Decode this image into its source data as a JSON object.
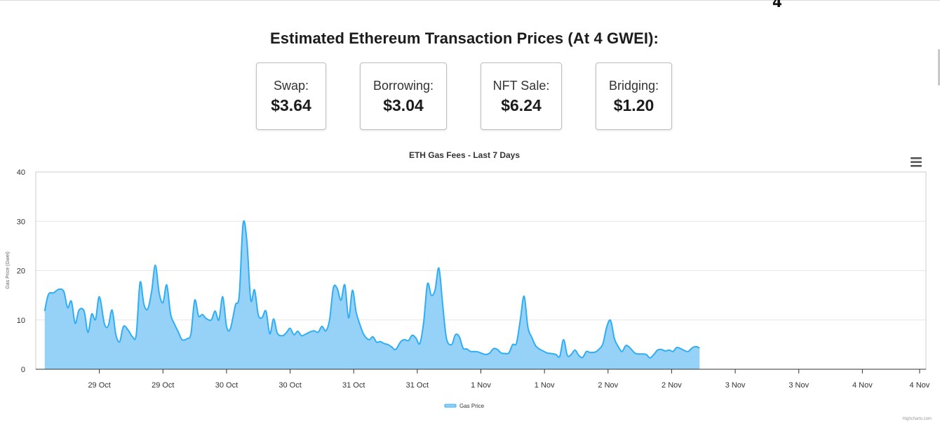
{
  "header": {
    "title": "Estimated Ethereum Transaction Prices (At 4 GWEI):",
    "corner_mark": "4"
  },
  "cards": [
    {
      "label": "Swap:",
      "value": "$3.64"
    },
    {
      "label": "Borrowing:",
      "value": "$3.04"
    },
    {
      "label": "NFT Sale:",
      "value": "$6.24"
    },
    {
      "label": "Bridging:",
      "value": "$1.20"
    }
  ],
  "credit": "Highcharts.com",
  "colors": {
    "area_fill": "#96d2f8",
    "line": "#2faef5",
    "grid": "#e6e6e6",
    "plot_border": "#cccccc"
  },
  "chart_data": {
    "type": "area",
    "title": "ETH Gas Fees - Last 7 Days",
    "ylabel": "Gas Price (Gwei)",
    "ylim": [
      0,
      40
    ],
    "yticks": [
      0,
      10,
      20,
      30,
      40
    ],
    "xlim": [
      0,
      7
    ],
    "x_unit": "days",
    "xticks": [
      {
        "x": 0.5,
        "label": "29 Oct"
      },
      {
        "x": 1.0,
        "label": "29 Oct"
      },
      {
        "x": 1.5,
        "label": "30 Oct"
      },
      {
        "x": 2.0,
        "label": "30 Oct"
      },
      {
        "x": 2.5,
        "label": "31 Oct"
      },
      {
        "x": 3.0,
        "label": "31 Oct"
      },
      {
        "x": 3.5,
        "label": "1 Nov"
      },
      {
        "x": 4.0,
        "label": "1 Nov"
      },
      {
        "x": 4.5,
        "label": "2 Nov"
      },
      {
        "x": 5.0,
        "label": "2 Nov"
      },
      {
        "x": 5.5,
        "label": "3 Nov"
      },
      {
        "x": 6.0,
        "label": "3 Nov"
      },
      {
        "x": 6.5,
        "label": "4 Nov"
      },
      {
        "x": 6.95,
        "label": "4 Nov"
      }
    ],
    "legend_position": "bottom-center",
    "series": [
      {
        "name": "Gas Price",
        "points": [
          [
            0.07,
            11.8
          ],
          [
            0.1,
            15.2
          ],
          [
            0.14,
            15.5
          ],
          [
            0.18,
            16.2
          ],
          [
            0.22,
            15.8
          ],
          [
            0.25,
            12.5
          ],
          [
            0.28,
            13.8
          ],
          [
            0.31,
            9.3
          ],
          [
            0.34,
            12.0
          ],
          [
            0.38,
            11.8
          ],
          [
            0.41,
            7.5
          ],
          [
            0.44,
            11.2
          ],
          [
            0.47,
            10.1
          ],
          [
            0.5,
            14.7
          ],
          [
            0.54,
            9.2
          ],
          [
            0.57,
            8.8
          ],
          [
            0.6,
            12.0
          ],
          [
            0.63,
            7.0
          ],
          [
            0.66,
            5.6
          ],
          [
            0.69,
            8.7
          ],
          [
            0.73,
            7.8
          ],
          [
            0.76,
            6.6
          ],
          [
            0.79,
            7.0
          ],
          [
            0.82,
            17.6
          ],
          [
            0.85,
            13.2
          ],
          [
            0.88,
            12.2
          ],
          [
            0.91,
            15.6
          ],
          [
            0.94,
            21.1
          ],
          [
            0.97,
            15.5
          ],
          [
            1.0,
            13.5
          ],
          [
            1.03,
            17.1
          ],
          [
            1.06,
            11.2
          ],
          [
            1.09,
            9.2
          ],
          [
            1.12,
            7.6
          ],
          [
            1.15,
            6.0
          ],
          [
            1.19,
            6.2
          ],
          [
            1.22,
            7.2
          ],
          [
            1.25,
            14.0
          ],
          [
            1.28,
            10.8
          ],
          [
            1.31,
            11.1
          ],
          [
            1.34,
            10.3
          ],
          [
            1.38,
            10.0
          ],
          [
            1.41,
            11.8
          ],
          [
            1.44,
            10.0
          ],
          [
            1.47,
            14.7
          ],
          [
            1.5,
            8.7
          ],
          [
            1.53,
            8.2
          ],
          [
            1.57,
            13.0
          ],
          [
            1.6,
            15.0
          ],
          [
            1.63,
            29.5
          ],
          [
            1.66,
            26.0
          ],
          [
            1.69,
            14.1
          ],
          [
            1.72,
            16.1
          ],
          [
            1.75,
            11.0
          ],
          [
            1.78,
            10.5
          ],
          [
            1.81,
            11.8
          ],
          [
            1.84,
            7.2
          ],
          [
            1.87,
            10.2
          ],
          [
            1.9,
            7.3
          ],
          [
            1.94,
            6.8
          ],
          [
            1.97,
            7.4
          ],
          [
            2.0,
            8.3
          ],
          [
            2.03,
            7.0
          ],
          [
            2.06,
            7.7
          ],
          [
            2.09,
            6.8
          ],
          [
            2.12,
            7.1
          ],
          [
            2.16,
            7.6
          ],
          [
            2.19,
            7.8
          ],
          [
            2.22,
            7.5
          ],
          [
            2.25,
            8.7
          ],
          [
            2.28,
            7.8
          ],
          [
            2.31,
            10.0
          ],
          [
            2.34,
            16.5
          ],
          [
            2.37,
            16.4
          ],
          [
            2.4,
            14.0
          ],
          [
            2.43,
            17.1
          ],
          [
            2.46,
            10.4
          ],
          [
            2.49,
            16.0
          ],
          [
            2.52,
            11.5
          ],
          [
            2.55,
            9.0
          ],
          [
            2.58,
            7.0
          ],
          [
            2.62,
            6.0
          ],
          [
            2.65,
            6.6
          ],
          [
            2.68,
            5.5
          ],
          [
            2.71,
            5.6
          ],
          [
            2.74,
            5.2
          ],
          [
            2.77,
            5.0
          ],
          [
            2.8,
            4.5
          ],
          [
            2.83,
            4.0
          ],
          [
            2.87,
            5.6
          ],
          [
            2.9,
            6.0
          ],
          [
            2.93,
            5.8
          ],
          [
            2.96,
            6.9
          ],
          [
            2.99,
            6.3
          ],
          [
            3.02,
            5.2
          ],
          [
            3.05,
            9.5
          ],
          [
            3.08,
            17.3
          ],
          [
            3.11,
            15.0
          ],
          [
            3.14,
            16.1
          ],
          [
            3.17,
            20.5
          ],
          [
            3.2,
            13.0
          ],
          [
            3.23,
            6.2
          ],
          [
            3.27,
            5.0
          ],
          [
            3.3,
            7.0
          ],
          [
            3.33,
            6.6
          ],
          [
            3.36,
            4.3
          ],
          [
            3.39,
            4.1
          ],
          [
            3.42,
            3.6
          ],
          [
            3.45,
            3.6
          ],
          [
            3.48,
            3.5
          ],
          [
            3.51,
            3.2
          ],
          [
            3.54,
            3.0
          ],
          [
            3.57,
            3.3
          ],
          [
            3.6,
            4.2
          ],
          [
            3.63,
            4.0
          ],
          [
            3.66,
            3.3
          ],
          [
            3.69,
            3.2
          ],
          [
            3.72,
            3.3
          ],
          [
            3.75,
            5.0
          ],
          [
            3.78,
            5.3
          ],
          [
            3.81,
            10.0
          ],
          [
            3.84,
            14.8
          ],
          [
            3.87,
            8.5
          ],
          [
            3.9,
            6.5
          ],
          [
            3.93,
            4.8
          ],
          [
            3.96,
            4.1
          ],
          [
            3.99,
            3.7
          ],
          [
            4.02,
            3.3
          ],
          [
            4.05,
            3.2
          ],
          [
            4.09,
            3.0
          ],
          [
            4.12,
            2.6
          ],
          [
            4.15,
            6.0
          ],
          [
            4.18,
            2.8
          ],
          [
            4.21,
            3.0
          ],
          [
            4.24,
            3.9
          ],
          [
            4.27,
            2.8
          ],
          [
            4.3,
            2.4
          ],
          [
            4.33,
            3.6
          ],
          [
            4.36,
            3.4
          ],
          [
            4.4,
            3.5
          ],
          [
            4.43,
            4.1
          ],
          [
            4.46,
            5.2
          ],
          [
            4.49,
            8.6
          ],
          [
            4.52,
            9.9
          ],
          [
            4.55,
            6.2
          ],
          [
            4.58,
            4.6
          ],
          [
            4.61,
            3.6
          ],
          [
            4.64,
            4.8
          ],
          [
            4.67,
            4.4
          ],
          [
            4.71,
            3.3
          ],
          [
            4.74,
            3.1
          ],
          [
            4.77,
            3.1
          ],
          [
            4.8,
            3.0
          ],
          [
            4.83,
            2.3
          ],
          [
            4.86,
            3.0
          ],
          [
            4.89,
            3.9
          ],
          [
            4.92,
            4.0
          ],
          [
            4.95,
            3.7
          ],
          [
            4.98,
            3.9
          ],
          [
            5.01,
            3.6
          ],
          [
            5.04,
            4.4
          ],
          [
            5.07,
            4.2
          ],
          [
            5.1,
            3.8
          ],
          [
            5.13,
            3.6
          ],
          [
            5.16,
            4.3
          ],
          [
            5.19,
            4.6
          ],
          [
            5.22,
            4.3
          ]
        ]
      }
    ]
  }
}
